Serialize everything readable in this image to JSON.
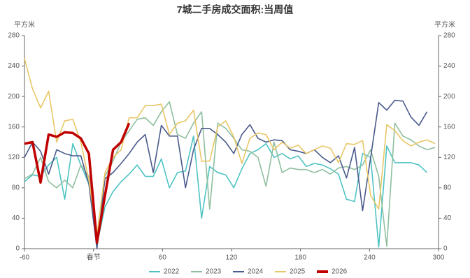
{
  "chart_data": {
    "type": "line",
    "title": "7城二手房成交面积:当周值",
    "y_label": "平方米",
    "y2_label": "平方米",
    "xlim": [
      -60,
      300
    ],
    "xticks": [
      -60,
      {
        "value": 0,
        "label": "春节"
      },
      60,
      120,
      180,
      240,
      300
    ],
    "ylim": [
      0,
      280
    ],
    "yticks": [
      0,
      40,
      80,
      120,
      160,
      200,
      240,
      280
    ],
    "y2lim": [
      0,
      280
    ],
    "y2ticks": [
      0,
      40,
      80,
      120,
      160,
      200,
      240,
      280
    ],
    "legend": "bottom",
    "series": [
      {
        "name": "2022",
        "color": "#4fc3c3",
        "x": [
          -60,
          -53,
          -46,
          -39,
          -32,
          -25,
          -18,
          -11,
          -4,
          3,
          10,
          17,
          24,
          31,
          38,
          45,
          52,
          59,
          66,
          73,
          80,
          87,
          94,
          101,
          108,
          115,
          122,
          129,
          136,
          143,
          150,
          157,
          164,
          171,
          178,
          185,
          192,
          199,
          206,
          213,
          220,
          227,
          234,
          241,
          248,
          255,
          262,
          269,
          276,
          283,
          290
        ],
        "values": [
          88,
          97,
          95,
          110,
          120,
          65,
          138,
          110,
          85,
          5,
          55,
          75,
          88,
          98,
          110,
          95,
          95,
          118,
          80,
          100,
          102,
          148,
          40,
          108,
          100,
          97,
          80,
          105,
          125,
          130,
          138,
          120,
          125,
          118,
          122,
          108,
          112,
          110,
          105,
          98,
          65,
          62,
          125,
          120,
          2,
          135,
          113,
          113,
          113,
          110,
          100
        ]
      },
      {
        "name": "2023",
        "color": "#8fbf9f",
        "x": [
          -60,
          -53,
          -46,
          -39,
          -32,
          -25,
          -18,
          -11,
          -4,
          3,
          10,
          17,
          24,
          31,
          38,
          45,
          52,
          59,
          66,
          73,
          80,
          87,
          94,
          101,
          108,
          115,
          122,
          129,
          136,
          143,
          150,
          157,
          164,
          171,
          178,
          185,
          192,
          199,
          206,
          213,
          220,
          227,
          234,
          241,
          248,
          255,
          262,
          269,
          276,
          283,
          290,
          297
        ],
        "values": [
          92,
          98,
          120,
          88,
          80,
          90,
          80,
          110,
          95,
          0,
          95,
          115,
          140,
          155,
          170,
          172,
          162,
          180,
          193,
          150,
          145,
          165,
          180,
          52,
          165,
          158,
          145,
          130,
          128,
          120,
          82,
          140,
          100,
          106,
          104,
          104,
          100,
          104,
          98,
          106,
          108,
          104,
          110,
          130,
          95,
          3,
          165,
          148,
          143,
          135,
          130,
          133
        ]
      },
      {
        "name": "2024",
        "color": "#4a5a8c",
        "x": [
          -60,
          -53,
          -46,
          -39,
          -32,
          -25,
          -18,
          -11,
          -4,
          3,
          10,
          17,
          24,
          31,
          38,
          45,
          52,
          59,
          66,
          73,
          80,
          87,
          94,
          101,
          108,
          115,
          122,
          129,
          136,
          143,
          150,
          157,
          164,
          171,
          178,
          185,
          192,
          199,
          206,
          213,
          220,
          227,
          234,
          241,
          248,
          255,
          262,
          269,
          276,
          283,
          290
        ],
        "values": [
          120,
          140,
          128,
          98,
          130,
          125,
          122,
          122,
          85,
          0,
          92,
          100,
          112,
          125,
          140,
          150,
          100,
          162,
          148,
          148,
          80,
          130,
          158,
          158,
          150,
          140,
          125,
          150,
          163,
          145,
          140,
          143,
          142,
          130,
          128,
          125,
          130,
          120,
          113,
          122,
          93,
          133,
          50,
          120,
          192,
          182,
          195,
          194,
          173,
          162,
          180
        ]
      },
      {
        "name": "2025",
        "color": "#e8c766",
        "x": [
          -60,
          -53,
          -46,
          -39,
          -32,
          -25,
          -18,
          -11,
          -4,
          3,
          10,
          17,
          24,
          31,
          38,
          45,
          52,
          59,
          66,
          73,
          80,
          87,
          94,
          101,
          108,
          115,
          122,
          129,
          136,
          143,
          150,
          157,
          164,
          171,
          178,
          185,
          192,
          199,
          206,
          213,
          220,
          227,
          234,
          241,
          248,
          255,
          262,
          269,
          276,
          283,
          290,
          297
        ],
        "values": [
          250,
          210,
          185,
          207,
          140,
          168,
          170,
          140,
          90,
          18,
          100,
          120,
          130,
          172,
          172,
          188,
          188,
          190,
          150,
          165,
          168,
          182,
          115,
          115,
          160,
          168,
          147,
          112,
          145,
          152,
          150,
          130,
          140,
          132,
          136,
          125,
          130,
          135,
          132,
          113,
          138,
          137,
          142,
          70,
          52,
          163,
          155,
          142,
          135,
          140,
          143,
          138
        ]
      },
      {
        "name": "2026",
        "color": "#c00000",
        "x": [
          -60,
          -53,
          -46,
          -39,
          -32,
          -25,
          -18,
          -11,
          -4,
          3,
          10,
          17,
          24,
          31
        ],
        "values": [
          138,
          140,
          87,
          150,
          147,
          153,
          152,
          145,
          125,
          8,
          70,
          130,
          140,
          165
        ]
      }
    ]
  }
}
